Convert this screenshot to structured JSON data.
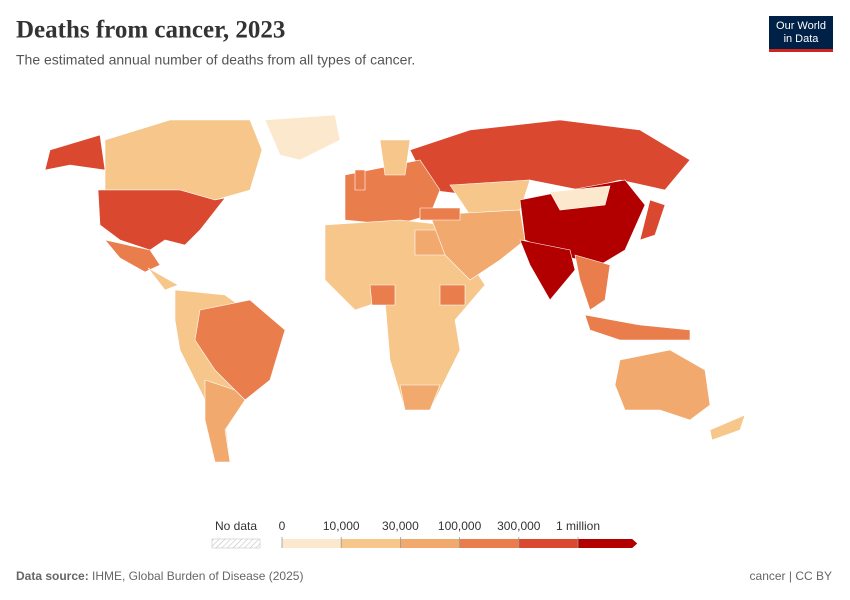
{
  "header": {
    "title": "Deaths from cancer, 2023",
    "subtitle": "The estimated annual number of deaths from all types of cancer.",
    "logo_lines": [
      "Our World",
      "in Data"
    ]
  },
  "legend": {
    "no_data": "No data",
    "ticks": [
      0,
      {
        "value": 10000,
        "label": "10,000"
      },
      {
        "value": 30000,
        "label": "30,000"
      },
      {
        "value": 100000,
        "label": "100,000"
      },
      {
        "value": 300000,
        "label": "300,000"
      },
      {
        "value": 1000000,
        "label": "1 million"
      }
    ],
    "colors": [
      "#fce8cc",
      "#f7c68b",
      "#f2a96e",
      "#ea7d4c",
      "#d9482f",
      "#b20000"
    ]
  },
  "footer": {
    "source_label": "Data source:",
    "source": "IHME, Global Burden of Disease (2025)",
    "license": "cancer | CC BY"
  }
}
